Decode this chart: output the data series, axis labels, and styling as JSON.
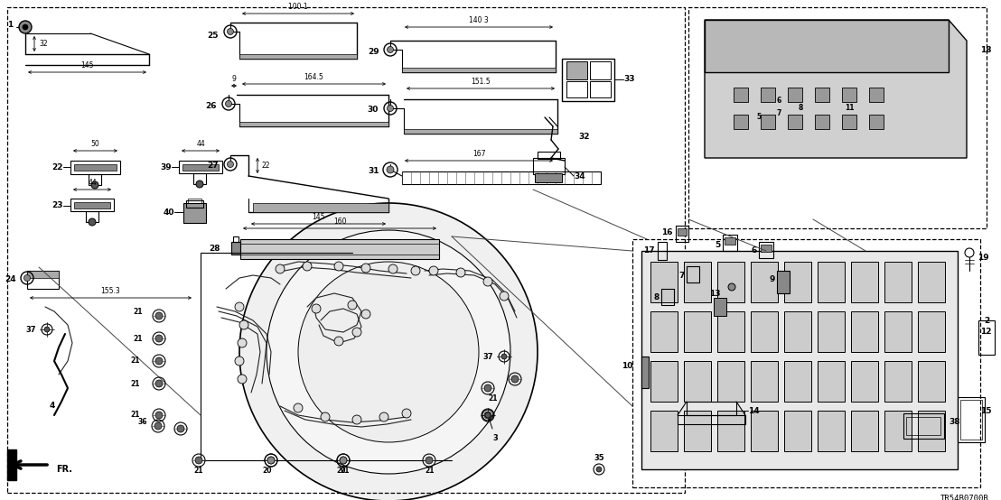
{
  "bg_color": "#ffffff",
  "line_color": "#000000",
  "fig_width": 11.08,
  "fig_height": 5.54,
  "dpi": 100,
  "ref_code": "TR54B0700B"
}
